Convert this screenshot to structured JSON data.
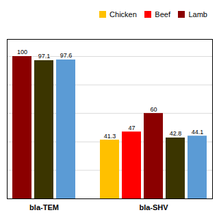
{
  "chart_data": {
    "type": "bar",
    "categories": [
      "bla-TEM",
      "bla-SHV"
    ],
    "values": [
      [
        100,
        97.1,
        97.6
      ],
      [
        41.3,
        47,
        60,
        42.8,
        44.1
      ]
    ],
    "colors": [
      [
        "#8B0000",
        "#3B3500",
        "#5B9BD5"
      ],
      [
        "#FFC000",
        "#FF0000",
        "#8B0000",
        "#3B3500",
        "#5B9BD5"
      ]
    ],
    "legend_entries": [
      {
        "name": "Chicken",
        "color": "#FFC000"
      },
      {
        "name": "Beef",
        "color": "#FF0000"
      },
      {
        "name": "Lamb",
        "color": "#8B0000"
      }
    ],
    "legend": "upper right",
    "ylim": [
      0,
      112
    ],
    "yticks": [
      20,
      40,
      60,
      80,
      100
    ],
    "grid": true,
    "tick_labels": "x",
    "data_labels": true
  }
}
